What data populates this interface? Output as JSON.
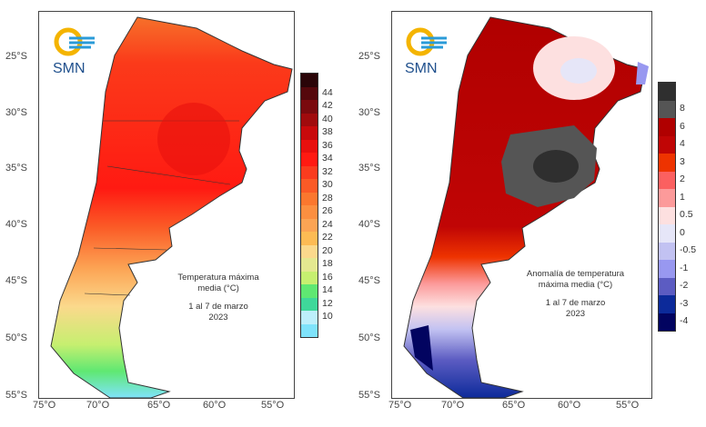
{
  "logo": {
    "text": "SMN"
  },
  "latitudes": [
    "25°S",
    "30°S",
    "35°S",
    "40°S",
    "45°S",
    "50°S",
    "55°S"
  ],
  "longitudes": [
    "75°O",
    "70°O",
    "65°O",
    "60°O",
    "55°O"
  ],
  "left_map": {
    "caption": [
      "Temperatura máxima",
      "media (°C)"
    ],
    "period": "1 al 7 de marzo",
    "year": "2023",
    "legend_labels": [
      "44",
      "42",
      "40",
      "38",
      "36",
      "34",
      "32",
      "30",
      "28",
      "26",
      "24",
      "22",
      "20",
      "18",
      "16",
      "14",
      "12",
      "10"
    ],
    "legend_colors": [
      "#2a0508",
      "#55080c",
      "#7a0a0e",
      "#a00b0d",
      "#c80a0c",
      "#e8100e",
      "#ff1a12",
      "#fa3c1e",
      "#fb5a26",
      "#fb772e",
      "#fc8f40",
      "#fca454",
      "#fdbb54",
      "#fbd98c",
      "#e4e890",
      "#c6ef70",
      "#5fe872",
      "#3fd89a",
      "#bdeffb",
      "#7fe3fb"
    ]
  },
  "right_map": {
    "caption": [
      "Anomalía de temperatura",
      "máxima media (°C)"
    ],
    "period": "1 al 7 de marzo",
    "year": "2023",
    "legend_labels": [
      "8",
      "6",
      "4",
      "3",
      "2",
      "1",
      "0.5",
      "0",
      "-0.5",
      "-1",
      "-2",
      "-3",
      "-4"
    ],
    "legend_colors": [
      "#2f2f2f",
      "#555555",
      "#b00000",
      "#c00505",
      "#ee3300",
      "#fb6060",
      "#fc9a9a",
      "#fde0e0",
      "#e6e6f8",
      "#c2c2f2",
      "#9898f0",
      "#5c5cc2",
      "#0c2a9a",
      "#020460"
    ]
  }
}
